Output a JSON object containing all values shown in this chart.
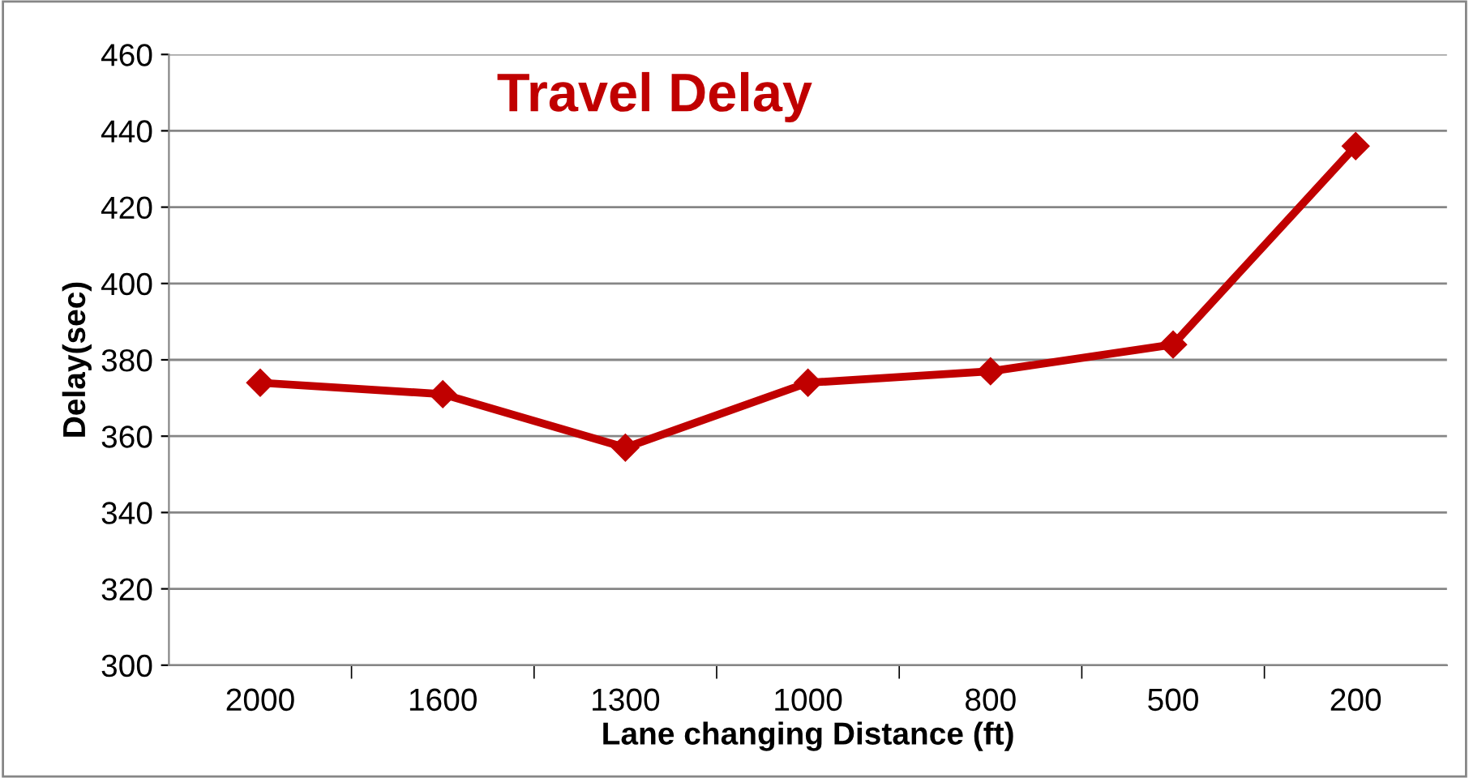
{
  "chart_data": {
    "type": "line",
    "title": "Travel Delay",
    "xlabel": "Lane changing Distance (ft)",
    "ylabel": "Delay(sec)",
    "categories": [
      "2000",
      "1600",
      "1300",
      "1000",
      "800",
      "500",
      "200"
    ],
    "series": [
      {
        "color": "#c00000",
        "values": [
          374,
          371,
          357,
          374,
          377,
          384,
          436
        ]
      }
    ],
    "ylim": [
      300,
      460
    ],
    "yticks": [
      300,
      320,
      340,
      360,
      380,
      400,
      420,
      440,
      460
    ],
    "grid": "y",
    "marker": "diamond",
    "line_style": "solid",
    "legend": false
  }
}
